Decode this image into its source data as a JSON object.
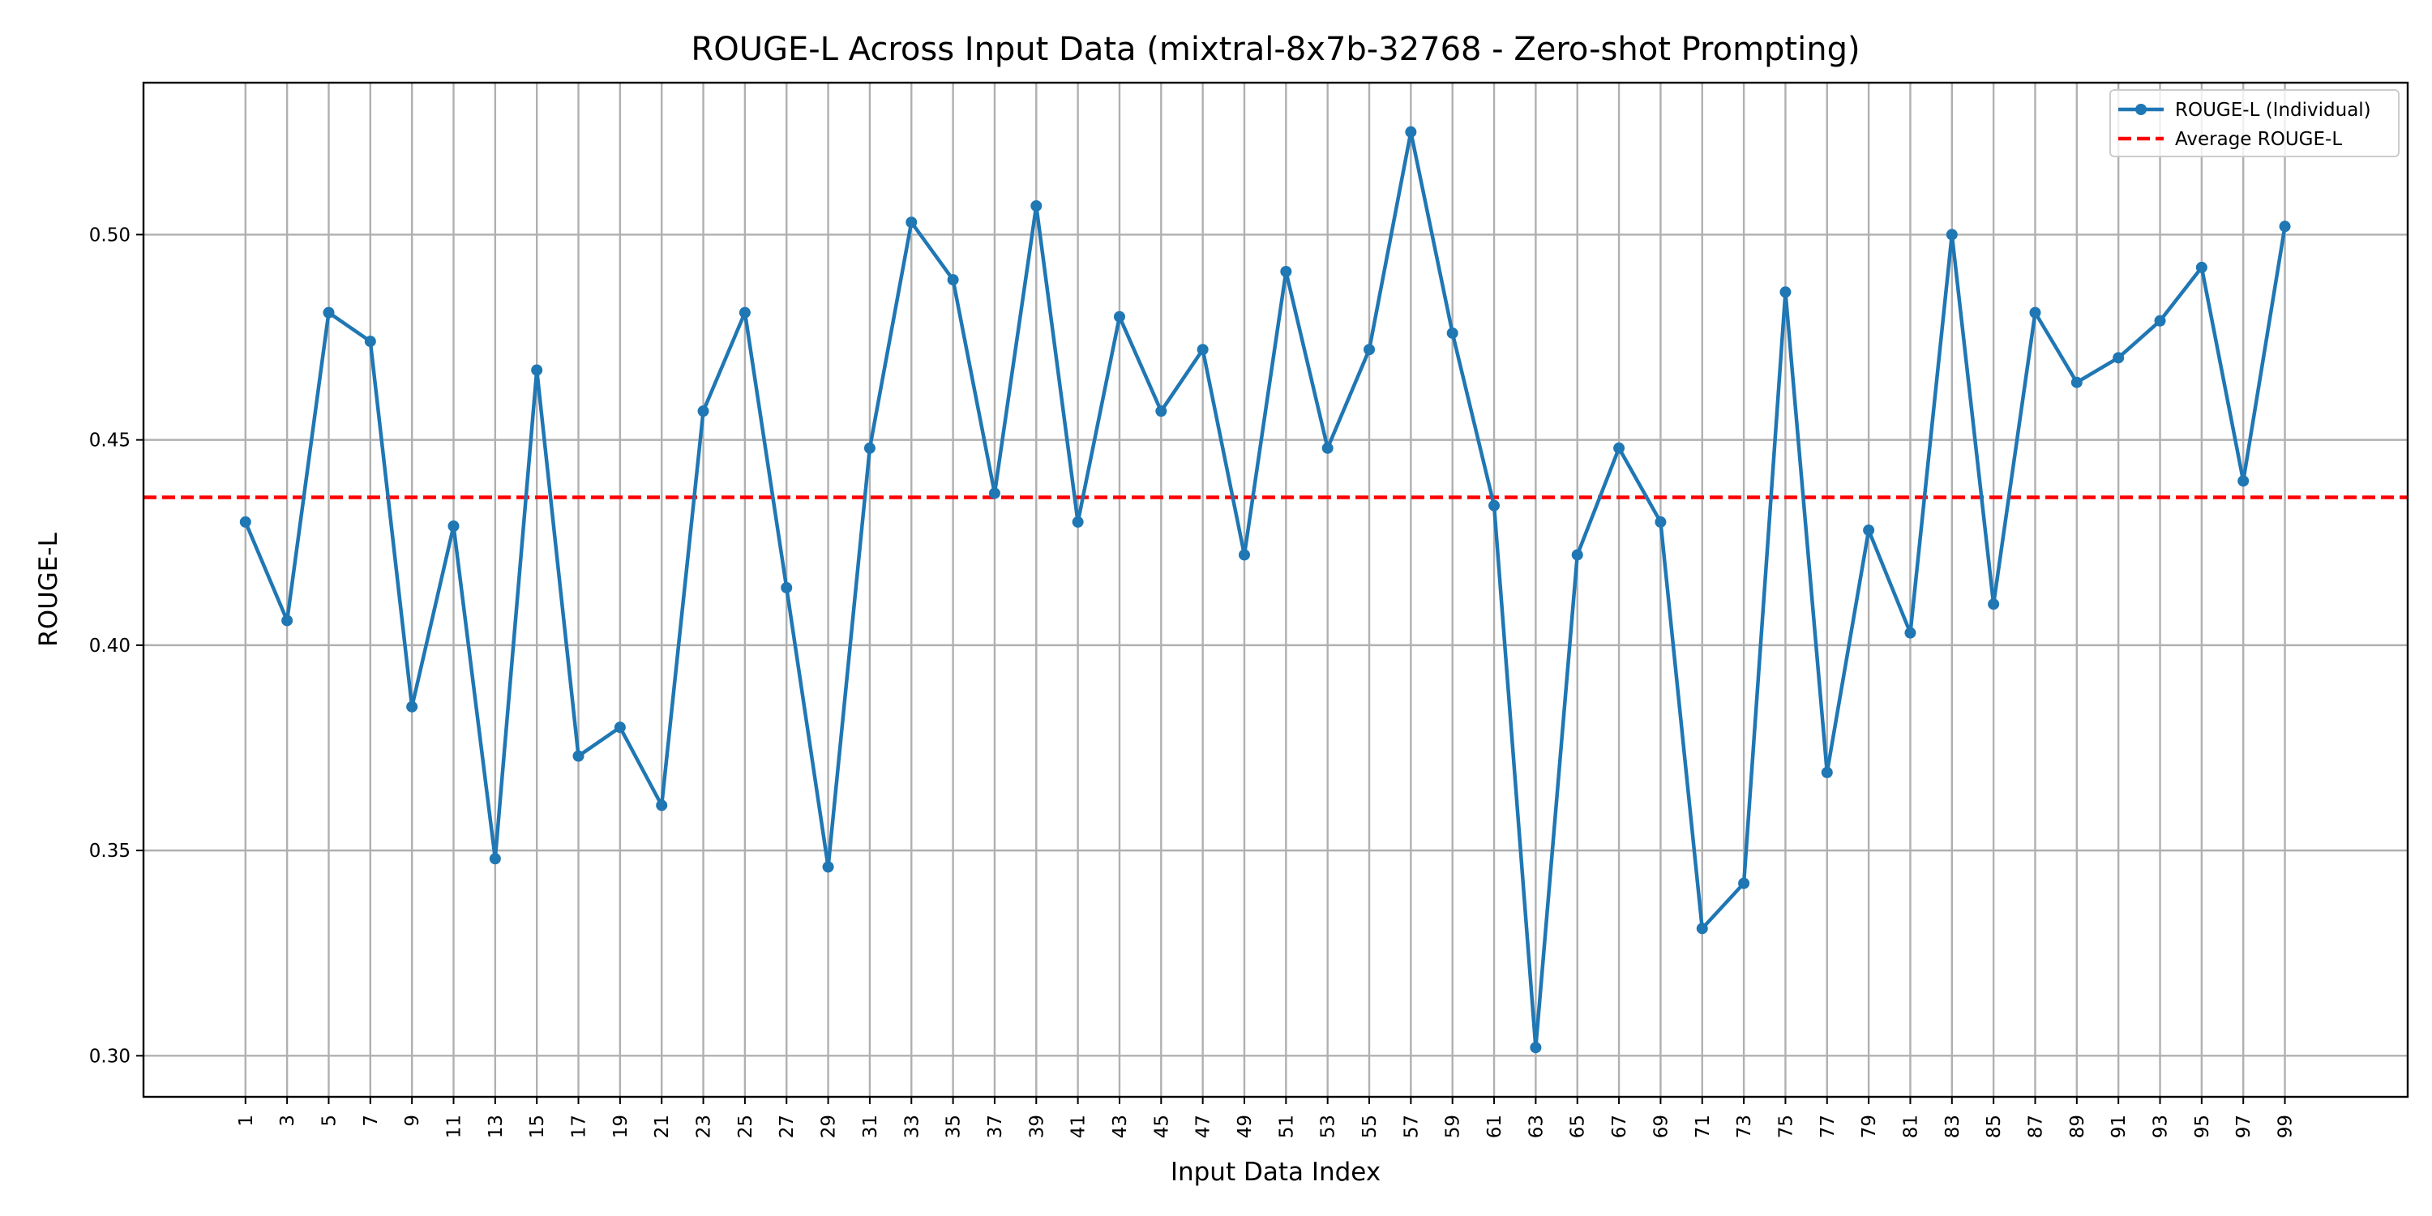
{
  "chart_data": {
    "type": "line",
    "title": "ROUGE-L Across Input Data (mixtral-8x7b-32768 - Zero-shot Prompting)",
    "xlabel": "Input Data Index",
    "ylabel": "ROUGE-L",
    "xlim": [
      -3.9,
      104.9
    ],
    "ylim": [
      0.29,
      0.537
    ],
    "grid": true,
    "legend_position": "top-right",
    "xticks": [
      1,
      3,
      5,
      7,
      9,
      11,
      13,
      15,
      17,
      19,
      21,
      23,
      25,
      27,
      29,
      31,
      33,
      35,
      37,
      39,
      41,
      43,
      45,
      47,
      49,
      51,
      53,
      55,
      57,
      59,
      61,
      63,
      65,
      67,
      69,
      71,
      73,
      75,
      77,
      79,
      81,
      83,
      85,
      87,
      89,
      91,
      93,
      95,
      97,
      99
    ],
    "yticks": [
      "0.30",
      "0.35",
      "0.40",
      "0.45",
      "0.50"
    ],
    "series": [
      {
        "name": "ROUGE-L (Individual)",
        "color": "#1f77b4",
        "style": "solid-with-markers",
        "x": [
          1,
          3,
          5,
          7,
          9,
          11,
          13,
          15,
          17,
          19,
          21,
          23,
          25,
          27,
          29,
          31,
          33,
          35,
          37,
          39,
          41,
          43,
          45,
          47,
          49,
          51,
          53,
          55,
          57,
          59,
          61,
          63,
          65,
          67,
          69,
          71,
          73,
          75,
          77,
          79,
          81,
          83,
          85,
          87,
          89,
          91,
          93,
          95,
          97,
          99
        ],
        "values": [
          0.43,
          0.406,
          0.481,
          0.474,
          0.385,
          0.429,
          0.348,
          0.467,
          0.373,
          0.38,
          0.361,
          0.457,
          0.481,
          0.414,
          0.346,
          0.448,
          0.503,
          0.489,
          0.437,
          0.507,
          0.43,
          0.48,
          0.457,
          0.472,
          0.422,
          0.491,
          0.448,
          0.472,
          0.525,
          0.476,
          0.434,
          0.302,
          0.422,
          0.448,
          0.43,
          0.331,
          0.342,
          0.486,
          0.369,
          0.428,
          0.403,
          0.5,
          0.41,
          0.481,
          0.464,
          0.47,
          0.479,
          0.492,
          0.44,
          0.502
        ]
      },
      {
        "name": "Average ROUGE-L",
        "color": "#ff0000",
        "style": "dashed",
        "value": 0.436
      }
    ]
  }
}
